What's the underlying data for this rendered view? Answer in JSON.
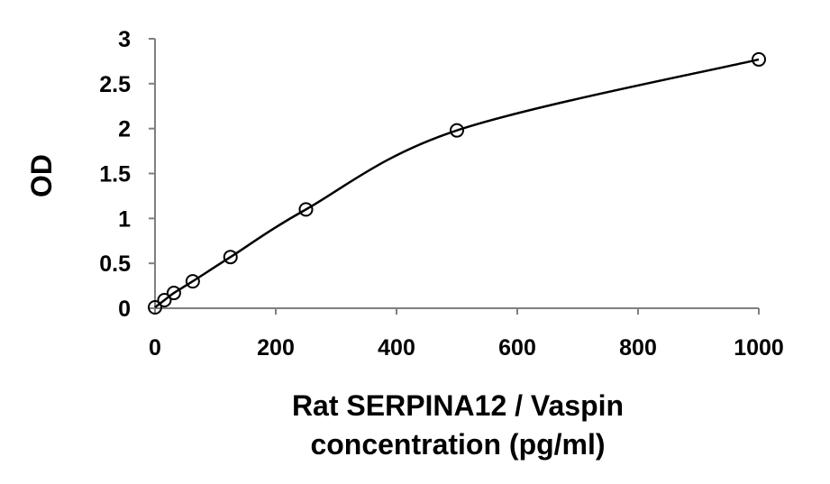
{
  "chart_data": {
    "type": "scatter",
    "title": "",
    "xlabel_lines": [
      "Rat SERPINA12 / Vaspin",
      "concentration (pg/ml)"
    ],
    "ylabel": "OD",
    "xlim": [
      0,
      1000
    ],
    "ylim": [
      0,
      3
    ],
    "xticks": [
      0,
      200,
      400,
      600,
      800,
      1000
    ],
    "yticks": [
      0,
      0.5,
      1,
      1.5,
      2,
      2.5,
      3
    ],
    "ytick_labels": [
      "0",
      "0.5",
      "1",
      "1.5",
      "2",
      "2.5",
      "3"
    ],
    "grid": false,
    "legend": false,
    "series": [
      {
        "x": [
          0,
          15.6,
          31.25,
          62.5,
          125,
          250,
          500,
          1000
        ],
        "y": [
          0.01,
          0.09,
          0.17,
          0.3,
          0.57,
          1.1,
          1.98,
          2.77
        ],
        "marker": "open-circle",
        "fit_line": true
      }
    ]
  }
}
